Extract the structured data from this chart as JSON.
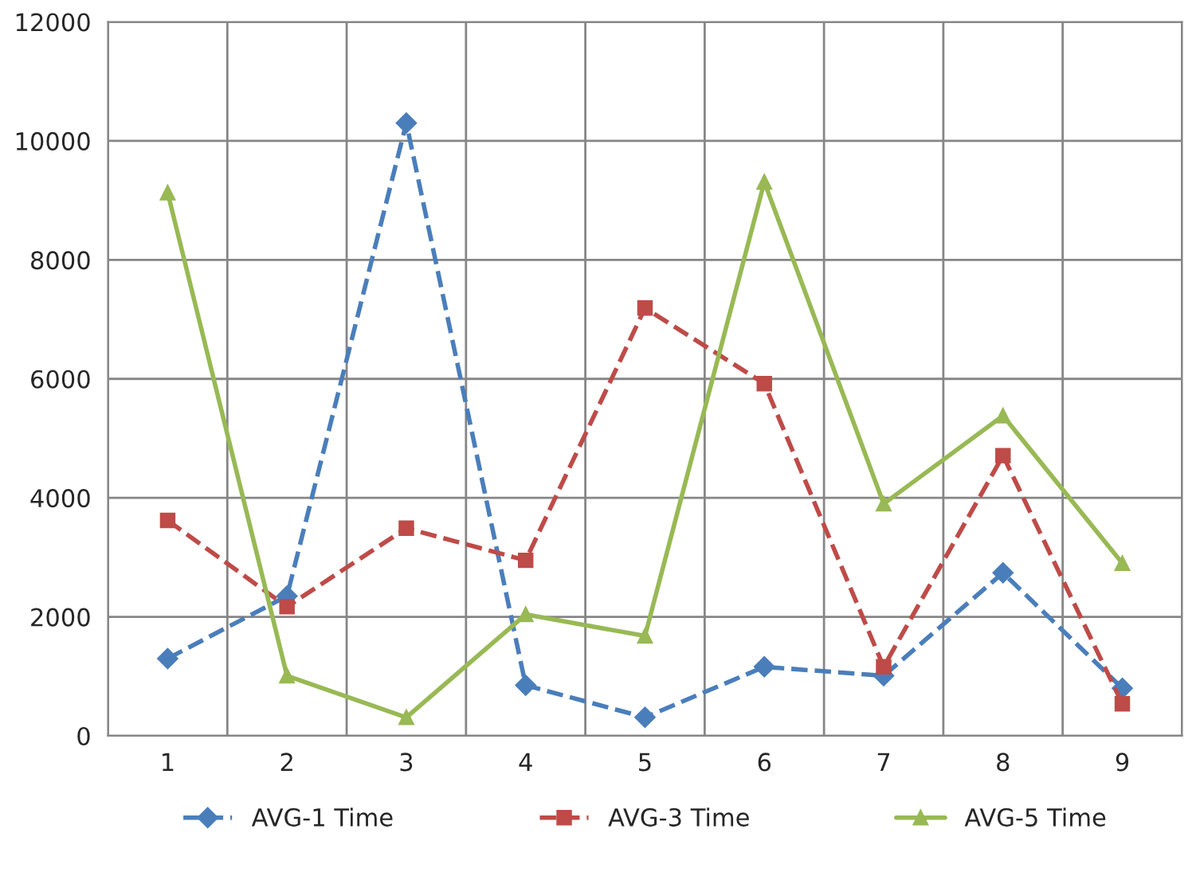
{
  "chart_data": {
    "type": "line",
    "categories": [
      "1",
      "2",
      "3",
      "4",
      "5",
      "6",
      "7",
      "8",
      "9"
    ],
    "series": [
      {
        "name": "AVG-1 Time",
        "color": "#4a7ebb",
        "marker": "diamond",
        "line_style": "dashed",
        "values": [
          1300,
          2350,
          10300,
          850,
          310,
          1160,
          1010,
          2740,
          800
        ]
      },
      {
        "name": "AVG-3 Time",
        "color": "#be4b48",
        "marker": "square",
        "line_style": "dashed",
        "values": [
          3620,
          2170,
          3490,
          2950,
          7190,
          5920,
          1160,
          4710,
          540
        ]
      },
      {
        "name": "AVG-5 Time",
        "color": "#98b954",
        "marker": "triangle",
        "line_style": "solid",
        "values": [
          9130,
          1010,
          310,
          2040,
          1680,
          9310,
          3900,
          5380,
          2900
        ]
      }
    ],
    "ylim": [
      0,
      12000
    ],
    "yticks": [
      0,
      2000,
      4000,
      6000,
      8000,
      10000,
      12000
    ],
    "grid": true,
    "legend": "bottom"
  }
}
